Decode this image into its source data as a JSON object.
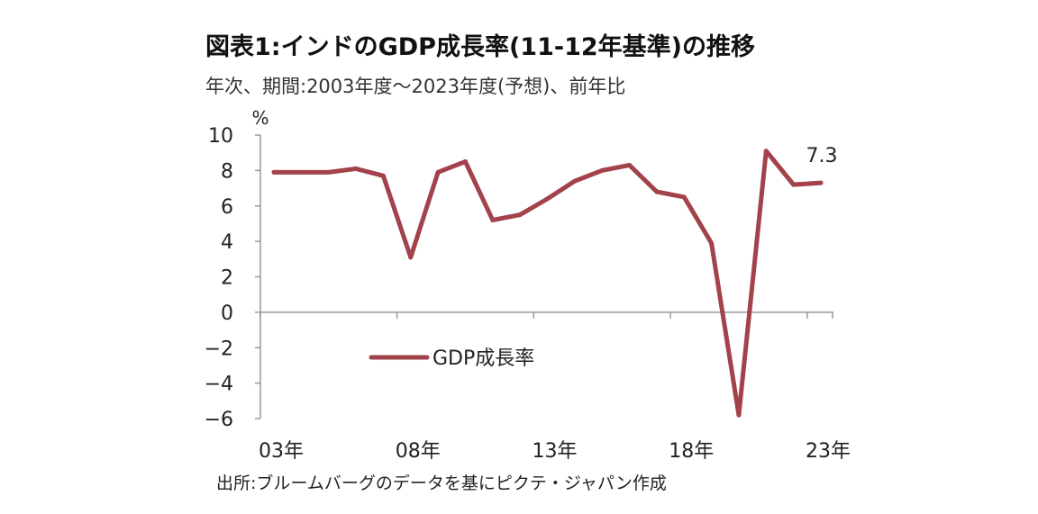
{
  "title": "図表1:インドのGDP成長率(11-12年基準)の推移",
  "subtitle": "年次、期間:2003年度～2023年度(予想)、前年比",
  "source": "出所:ブルームバーグのデータを基にピクテ・ジャパン作成",
  "colors": {
    "series": "#a2424a",
    "axis": "#999999"
  },
  "chart_data": {
    "type": "line",
    "ylabel": "%",
    "ylim": [
      -6,
      10
    ],
    "yticks": [
      10,
      8,
      6,
      4,
      2,
      0,
      -2,
      -4,
      -6
    ],
    "xticks": [
      {
        "year": 2003,
        "label": "03年"
      },
      {
        "year": 2008,
        "label": "08年"
      },
      {
        "year": 2013,
        "label": "13年"
      },
      {
        "year": 2018,
        "label": "18年"
      },
      {
        "year": 2023,
        "label": "23年"
      }
    ],
    "x": [
      2003,
      2004,
      2005,
      2006,
      2007,
      2008,
      2009,
      2010,
      2011,
      2012,
      2013,
      2014,
      2015,
      2016,
      2017,
      2018,
      2019,
      2020,
      2021,
      2022,
      2023
    ],
    "series": [
      {
        "name": "GDP成長率",
        "values": [
          7.9,
          7.9,
          7.9,
          8.1,
          7.7,
          3.1,
          7.9,
          8.5,
          5.2,
          5.5,
          6.4,
          7.4,
          8.0,
          8.3,
          6.8,
          6.5,
          3.9,
          -5.8,
          9.1,
          7.2,
          7.3
        ]
      }
    ],
    "annotation": "7.3",
    "legend": "center-left",
    "grid": false
  }
}
